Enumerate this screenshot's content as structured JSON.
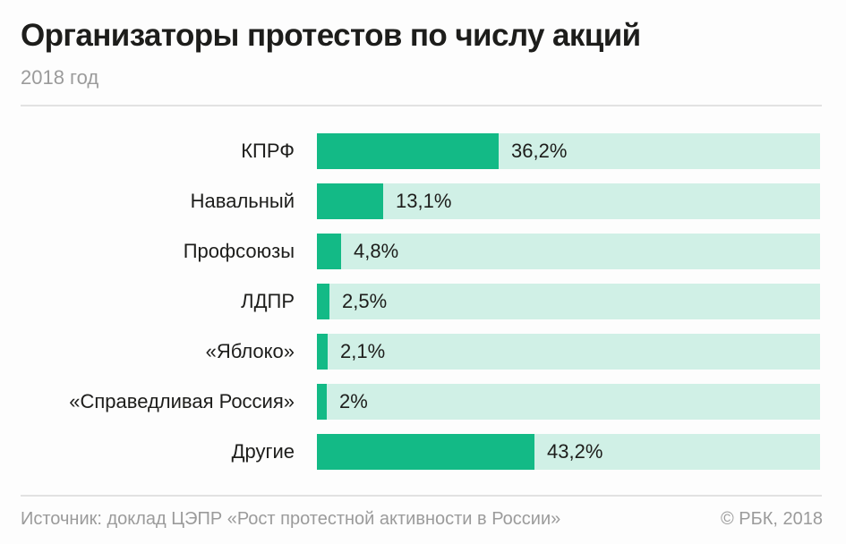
{
  "header": {
    "title": "Организаторы протестов по числу акций",
    "subtitle": "2018 год"
  },
  "footer": {
    "source": "Источник: доклад ЦЭПР «Рост протестной активности в России»",
    "copyright": "© РБК, 2018"
  },
  "colors": {
    "bar": "#13ba86",
    "track": "#d0f0e6",
    "text": "#1d1d1b",
    "muted": "#9b9b9b"
  },
  "chart_data": {
    "type": "bar",
    "orientation": "horizontal",
    "title": "Организаторы протестов по числу акций",
    "subtitle": "2018 год",
    "xlabel": "",
    "ylabel": "",
    "unit": "%",
    "xlim": [
      0,
      100
    ],
    "grid": false,
    "legend": "none",
    "categories": [
      "КПРФ",
      "Навальный",
      "Профсоюзы",
      "ЛДПР",
      "«Яблоко»",
      "«Справедливая Россия»",
      "Другие"
    ],
    "values": [
      36.2,
      13.1,
      4.8,
      2.5,
      2.1,
      2,
      43.2
    ],
    "value_labels": [
      "36,2%",
      "13,1%",
      "4,8%",
      "2,5%",
      "2,1%",
      "2%",
      "43,2%"
    ]
  }
}
